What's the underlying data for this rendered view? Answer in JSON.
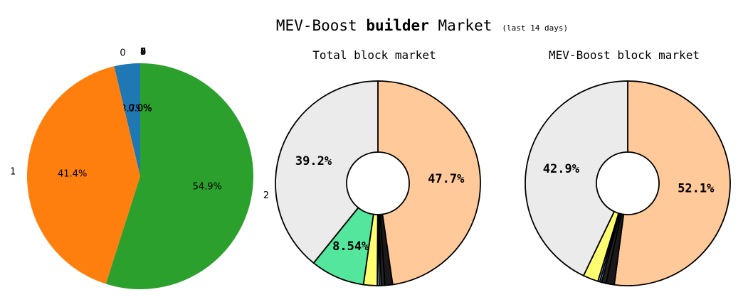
{
  "page": {
    "title_prefix": "MEV-Boost ",
    "title_bold": "builder",
    "title_suffix": " Market",
    "title_note": "(last 14 days)"
  },
  "chart_data": [
    {
      "type": "pie",
      "title": "",
      "slices": [
        {
          "label": "0",
          "value": 3.7,
          "color": "#1f77b4",
          "pct_label": "3.7%"
        },
        {
          "label": "1",
          "value": 41.4,
          "color": "#ff7f0e",
          "pct_label": "41.4%"
        },
        {
          "label": "2",
          "value": 54.9,
          "color": "#2ca02c",
          "pct_label": "54.9%"
        },
        {
          "label": "3",
          "value": 0.0,
          "color": "#d62728",
          "pct_label": "0.0%"
        },
        {
          "label": "4",
          "value": 0.0,
          "color": "#9467bd",
          "pct_label": "0.0%"
        },
        {
          "label": "5",
          "value": 0.0,
          "color": "#8c564b",
          "pct_label": "0.0%"
        },
        {
          "label": "6",
          "value": 0.0,
          "color": "#e377c2",
          "pct_label": "0.0%"
        },
        {
          "label": "7",
          "value": 0.0,
          "color": "#7f7f7f",
          "pct_label": "0.0%"
        },
        {
          "label": "8",
          "value": 0.0,
          "color": "#bcbd22",
          "pct_label": "0.0%"
        },
        {
          "label": "9",
          "value": 0.0,
          "color": "#17becf",
          "pct_label": "0.0%"
        }
      ]
    },
    {
      "type": "pie",
      "title": "Total block market",
      "slices": [
        {
          "value": 47.7,
          "color": "#ffc999",
          "pct_label": "47.7%"
        },
        {
          "value": 1.2,
          "color": "#1a1a1a",
          "pct_label": ""
        },
        {
          "value": 0.6,
          "color": "#222222",
          "pct_label": ""
        },
        {
          "value": 0.3,
          "color": "#6f8fb3",
          "pct_label": ""
        },
        {
          "value": 0.3,
          "color": "#a9cfe6",
          "pct_label": ""
        },
        {
          "value": 2.16,
          "color": "#ffff70",
          "pct_label": ""
        },
        {
          "value": 8.54,
          "color": "#53e69c",
          "pct_label": "8.54%"
        },
        {
          "value": 39.2,
          "color": "#ebebeb",
          "pct_label": "39.2%"
        }
      ]
    },
    {
      "type": "pie",
      "title": "MEV-Boost block market",
      "slices": [
        {
          "value": 52.1,
          "color": "#ffc999",
          "pct_label": "52.1%"
        },
        {
          "value": 1.3,
          "color": "#1a1a1a",
          "pct_label": ""
        },
        {
          "value": 0.7,
          "color": "#222222",
          "pct_label": ""
        },
        {
          "value": 0.3,
          "color": "#6f8fb3",
          "pct_label": ""
        },
        {
          "value": 0.3,
          "color": "#a9cfe6",
          "pct_label": ""
        },
        {
          "value": 2.4,
          "color": "#ffff70",
          "pct_label": ""
        },
        {
          "value": 42.9,
          "color": "#ebebeb",
          "pct_label": "42.9%"
        }
      ]
    }
  ]
}
